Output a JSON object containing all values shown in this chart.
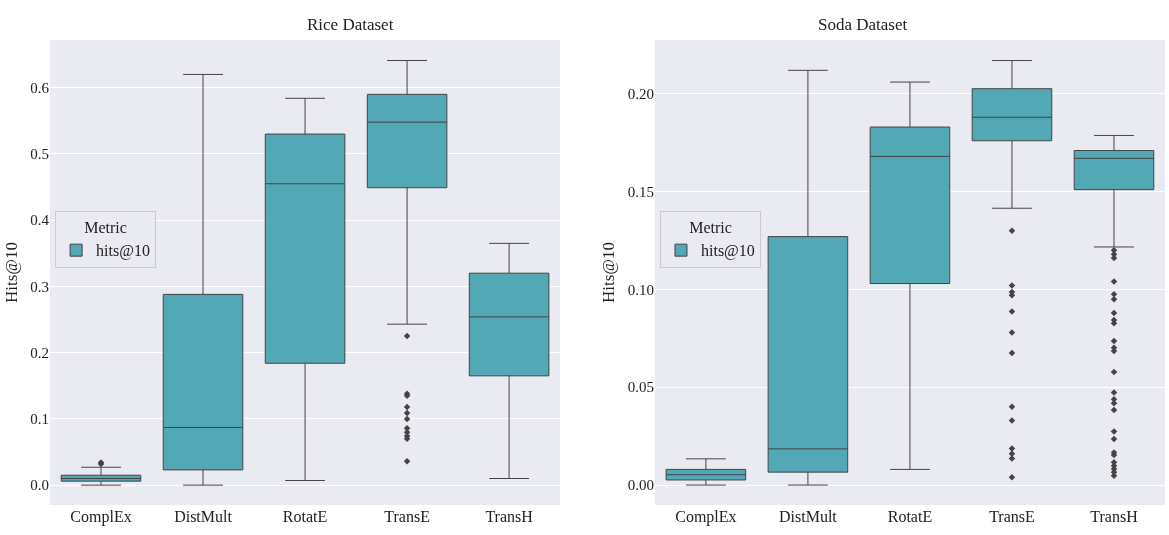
{
  "chart_data": [
    {
      "type": "box",
      "title": "Rice Dataset",
      "ylabel": "Hits@10",
      "categories": [
        "ComplEx",
        "DistMult",
        "RotatE",
        "TransE",
        "TransH"
      ],
      "ylim": [
        -0.03,
        0.672
      ],
      "yticks": [
        {
          "value": 0,
          "label": "0.0"
        },
        0.1,
        0.2,
        0.3,
        0.4,
        0.5,
        0.6
      ],
      "grid": "y",
      "legend": "left",
      "legend_title": "Metric",
      "marker": "diamond",
      "series": [
        {
          "name": "hits@10",
          "color": "#52a8b5",
          "boxes": [
            {
              "low": 0.0,
              "q1": 0.006,
              "median": 0.01,
              "q3": 0.015,
              "high": 0.027,
              "outliers": [
                0.032,
                0.034
              ]
            },
            {
              "low": 0.0,
              "q1": 0.023,
              "median": 0.087,
              "q3": 0.288,
              "high": 0.62
            },
            {
              "low": 0.007,
              "q1": 0.184,
              "median": 0.455,
              "q3": 0.53,
              "high": 0.584
            },
            {
              "low": 0.243,
              "q1": 0.449,
              "median": 0.548,
              "q3": 0.59,
              "high": 0.641,
              "outliers": [
                0.225,
                0.138,
                0.135,
                0.118,
                0.109,
                0.1,
                0.086,
                0.08,
                0.074,
                0.07,
                0.036
              ]
            },
            {
              "low": 0.01,
              "q1": 0.165,
              "median": 0.254,
              "q3": 0.32,
              "high": 0.365
            }
          ]
        }
      ]
    },
    {
      "type": "box",
      "title": "Soda Dataset",
      "ylabel": "Hits@10",
      "categories": [
        "ComplEx",
        "DistMult",
        "RotatE",
        "TransE",
        "TransH"
      ],
      "ylim": [
        -0.0102,
        0.2275
      ],
      "yticks": [
        {
          "value": 0,
          "label": "0.00"
        },
        {
          "value": 0.05,
          "label": "0.05"
        },
        {
          "value": 0.1,
          "label": "0.10"
        },
        {
          "value": 0.15,
          "label": "0.15"
        },
        {
          "value": 0.2,
          "label": "0.20"
        }
      ],
      "grid": "y",
      "legend": "left",
      "legend_title": "Metric",
      "marker": "diamond",
      "series": [
        {
          "name": "hits@10",
          "color": "#52a8b5",
          "boxes": [
            {
              "low": 0.0,
              "q1": 0.0026,
              "median": 0.0053,
              "q3": 0.008,
              "high": 0.0134
            },
            {
              "low": 0.0,
              "q1": 0.0066,
              "median": 0.0185,
              "q3": 0.127,
              "high": 0.212
            },
            {
              "low": 0.008,
              "q1": 0.103,
              "median": 0.168,
              "q3": 0.183,
              "high": 0.206
            },
            {
              "low": 0.1415,
              "q1": 0.176,
              "median": 0.188,
              "q3": 0.2026,
              "high": 0.217,
              "outliers": [
                0.13,
                0.102,
                0.0987,
                0.097,
                0.0887,
                0.078,
                0.0675,
                0.04,
                0.033,
                0.0187,
                0.016,
                0.0136,
                0.004
              ]
            },
            {
              "low": 0.1217,
              "q1": 0.151,
              "median": 0.167,
              "q3": 0.171,
              "high": 0.1787,
              "outliers": [
                0.12,
                0.118,
                0.116,
                0.104,
                0.0975,
                0.095,
                0.088,
                0.0844,
                0.0827,
                0.0736,
                0.0702,
                0.0685,
                0.0578,
                0.0473,
                0.0439,
                0.0418,
                0.0384,
                0.0274,
                0.0235,
                0.0167,
                0.0153,
                0.0116,
                0.0099,
                0.0082,
                0.0065,
                0.0048
              ]
            }
          ]
        }
      ]
    }
  ]
}
